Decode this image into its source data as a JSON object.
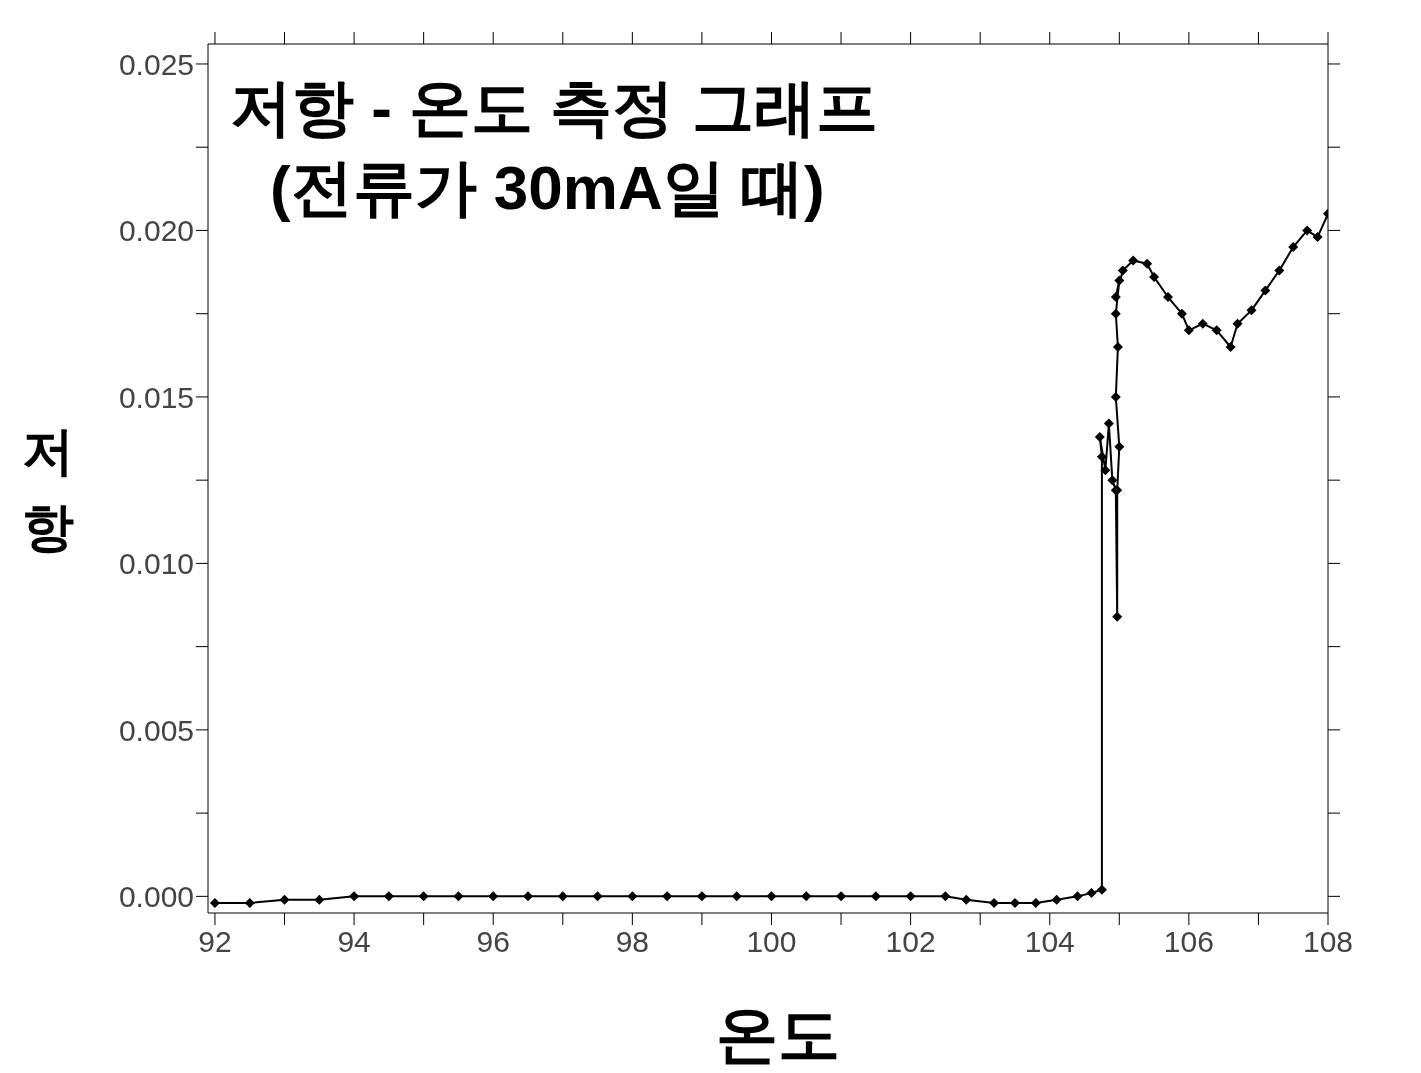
{
  "chart_data": {
    "type": "line",
    "title": "저항 - 온도 측정 그래프",
    "subtitle": "(전류가 30mA일 때)",
    "xlabel": "온도",
    "ylabel": "저항",
    "xlim": [
      91.9,
      108
    ],
    "ylim": [
      -0.0005,
      0.0256
    ],
    "xticks": [
      92,
      {
        "value": 93,
        "label": null
      },
      94,
      {
        "value": 95,
        "label": null
      },
      96,
      {
        "value": 97,
        "label": null
      },
      98,
      {
        "value": 99,
        "label": null
      },
      100,
      {
        "value": 101,
        "label": null
      },
      102,
      {
        "value": 103,
        "label": null
      },
      104,
      {
        "value": 105,
        "label": null
      },
      106,
      {
        "value": 107,
        "label": null
      },
      108
    ],
    "yticks": [
      {
        "value": 0,
        "label": "0.000"
      },
      {
        "value": 0.0025,
        "label": null
      },
      {
        "value": 0.005,
        "label": "0.005"
      },
      {
        "value": 0.0075,
        "label": null
      },
      {
        "value": 0.01,
        "label": "0.010"
      },
      {
        "value": 0.0125,
        "label": null
      },
      {
        "value": 0.015,
        "label": "0.015"
      },
      {
        "value": 0.0175,
        "label": null
      },
      {
        "value": 0.02,
        "label": "0.020"
      },
      {
        "value": 0.0225,
        "label": null
      },
      {
        "value": 0.025,
        "label": "0.025"
      }
    ],
    "marker": "diamond",
    "line_style": "solid",
    "series": [
      {
        "color": "#000000",
        "x": [
          92,
          92.5,
          93,
          93.5,
          94,
          94.5,
          95,
          95.5,
          96,
          96.5,
          97,
          97.5,
          98,
          98.5,
          99,
          99.5,
          100,
          100.5,
          101,
          101.5,
          102,
          102.5,
          102.8,
          103.2,
          103.5,
          103.8,
          104.1,
          104.4,
          104.6,
          104.75,
          104.75,
          104.72,
          104.8,
          104.85,
          104.9,
          104.95,
          104.97,
          104.97,
          105,
          104.95,
          104.98,
          104.95,
          105,
          104.95,
          105.05,
          105.2,
          105.4,
          105.5,
          105.7,
          105.9,
          106,
          106.2,
          106.4,
          106.6,
          106.7,
          106.9,
          107.1,
          107.3,
          107.5,
          107.7,
          107.85,
          108
        ],
        "values": [
          -0.0002,
          -0.0002,
          -0.0001,
          -0.0001,
          0,
          0,
          0,
          0,
          0,
          0,
          0,
          0,
          0,
          0,
          0,
          0,
          0,
          0,
          0,
          0,
          0,
          0,
          -0.0001,
          -0.0002,
          -0.0002,
          -0.0002,
          -0.0001,
          0,
          0.0001,
          0.0002,
          0.0132,
          0.0138,
          0.0128,
          0.0142,
          0.0125,
          0.0122,
          0.0084,
          0.0122,
          0.0135,
          0.015,
          0.0165,
          0.0175,
          0.0185,
          0.018,
          0.0188,
          0.0191,
          0.019,
          0.0186,
          0.018,
          0.0175,
          0.017,
          0.0172,
          0.017,
          0.0165,
          0.0172,
          0.0176,
          0.0182,
          0.0188,
          0.0195,
          0.02,
          0.0198,
          0.0205
        ]
      }
    ]
  }
}
